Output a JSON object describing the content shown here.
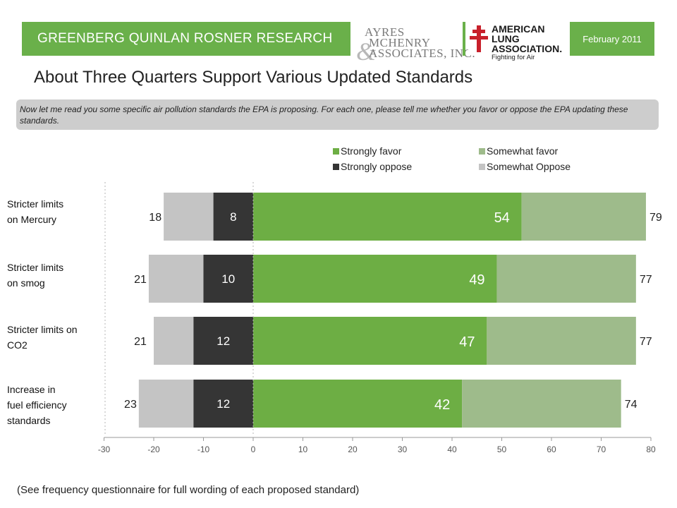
{
  "header": {
    "firm": "GREENBERG QUINLAN ROSNER RESEARCH",
    "ayres": {
      "line1": "AYRES",
      "line2": "MCHENRY",
      "line3": "ASSOCIATES, INC."
    },
    "ala": {
      "line1": "AMERICAN",
      "line2": "LUNG",
      "line3": "ASSOCIATION.",
      "tagline": "Fighting for Air"
    },
    "date": "February 2011"
  },
  "title": "About Three Quarters Support Various Updated Standards",
  "question": "Now let me read you some specific air pollution standards the EPA is proposing. For each one, please tell me whether you favor or oppose the EPA updating these standards.",
  "footnote": "(See frequency questionnaire for full wording of each proposed standard)",
  "colors": {
    "strongly_favor": "#6dae44",
    "somewhat_favor": "#9ebb8b",
    "strongly_oppose": "#353535",
    "somewhat_oppose": "#c4c4c4"
  },
  "chart_data": {
    "type": "bar",
    "orientation": "horizontal-diverging-stacked",
    "categories": [
      [
        "Stricter limits",
        "on Mercury"
      ],
      [
        "Stricter limits",
        "on smog"
      ],
      [
        "Stricter limits on",
        "CO2"
      ],
      [
        "Increase in",
        "fuel efficiency",
        "standards"
      ]
    ],
    "series": [
      {
        "name": "Strongly favor",
        "values": [
          54,
          49,
          47,
          42
        ]
      },
      {
        "name": "Somewhat favor",
        "values": [
          25,
          28,
          30,
          32
        ]
      },
      {
        "name": "Strongly oppose",
        "values": [
          8,
          10,
          12,
          12
        ]
      },
      {
        "name": "Somewhat Oppose",
        "values": [
          10,
          11,
          8,
          11
        ]
      }
    ],
    "total_favor": [
      79,
      77,
      77,
      74
    ],
    "total_oppose": [
      18,
      21,
      21,
      23
    ],
    "legend": [
      "Strongly favor",
      "Somewhat favor",
      "Strongly oppose",
      "Somewhat Oppose"
    ],
    "legend_position": "top-right",
    "xlim": [
      -30,
      80
    ],
    "xticks": [
      -30,
      -20,
      -10,
      0,
      10,
      20,
      30,
      40,
      50,
      60,
      70,
      80
    ],
    "grid": false
  }
}
